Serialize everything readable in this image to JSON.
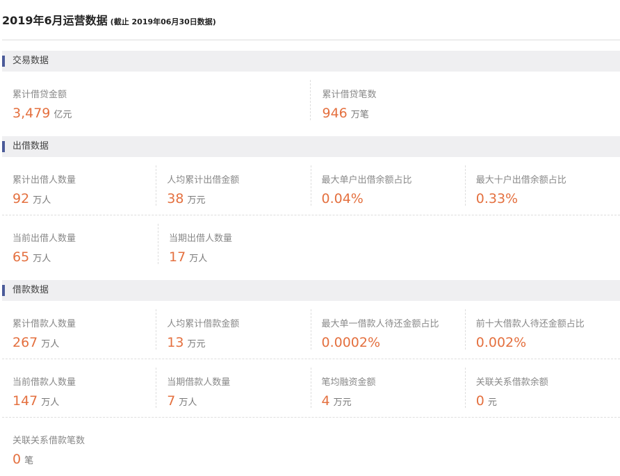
{
  "header": {
    "title": "2019年6月运营数据",
    "subtitle": "(截止 2019年06月30日数据)"
  },
  "sections": [
    {
      "title": "交易数据",
      "rows": [
        [
          {
            "label": "累计借贷金额",
            "value": "3,479",
            "unit": "亿元"
          },
          {
            "label": "累计借贷笔数",
            "value": "946",
            "unit": "万笔"
          }
        ]
      ]
    },
    {
      "title": "出借数据",
      "rows": [
        [
          {
            "label": "累计出借人数量",
            "value": "92",
            "unit": "万人"
          },
          {
            "label": "人均累计出借金额",
            "value": "38",
            "unit": "万元"
          },
          {
            "label": "最大单户出借余额占比",
            "value": "0.04%",
            "unit": ""
          },
          {
            "label": "最大十户出借余额占比",
            "value": "0.33%",
            "unit": ""
          }
        ],
        [
          {
            "label": "当前出借人数量",
            "value": "65",
            "unit": "万人"
          },
          {
            "label": "当期出借人数量",
            "value": "17",
            "unit": "万人"
          }
        ]
      ]
    },
    {
      "title": "借款数据",
      "rows": [
        [
          {
            "label": "累计借款人数量",
            "value": "267",
            "unit": "万人"
          },
          {
            "label": "人均累计借款金额",
            "value": "13",
            "unit": "万元"
          },
          {
            "label": "最大单一借款人待还金额占比",
            "value": "0.0002%",
            "unit": ""
          },
          {
            "label": "前十大借款人待还金额占比",
            "value": "0.002%",
            "unit": ""
          }
        ],
        [
          {
            "label": "当前借款人数量",
            "value": "147",
            "unit": "万人"
          },
          {
            "label": "当期借款人数量",
            "value": "7",
            "unit": "万人"
          },
          {
            "label": "笔均融资金额",
            "value": "4",
            "unit": "万元"
          },
          {
            "label": "关联关系借款余额",
            "value": "0",
            "unit": "元"
          }
        ],
        [
          {
            "label": "关联关系借款笔数",
            "value": "0",
            "unit": "笔"
          }
        ]
      ]
    }
  ],
  "colors": {
    "accent": "#4b5b99",
    "value": "#e4703f",
    "section_bg": "#efeff1"
  }
}
